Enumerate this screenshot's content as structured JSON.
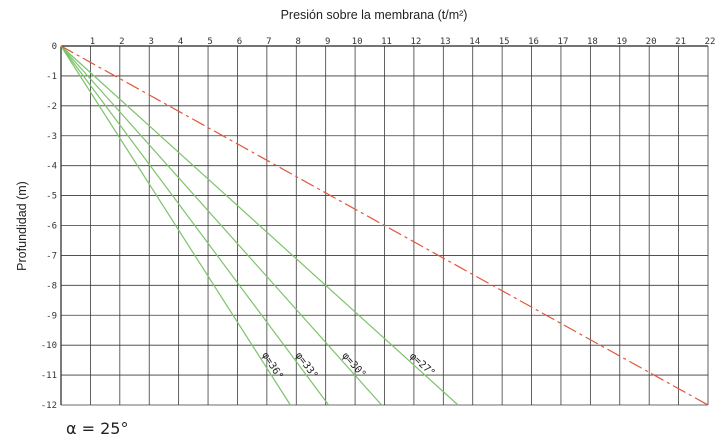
{
  "chart_data": {
    "type": "line",
    "title": "Presión sobre la membrana (t/m²)",
    "xlabel": "",
    "ylabel": "Profundidad (m)",
    "xlim": [
      0,
      22
    ],
    "ylim": [
      -12,
      0
    ],
    "x_ticks": [
      1,
      2,
      3,
      4,
      5,
      6,
      7,
      8,
      9,
      10,
      11,
      12,
      13,
      14,
      15,
      16,
      17,
      18,
      19,
      20,
      21,
      22
    ],
    "y_ticks": [
      0,
      -1,
      -2,
      -3,
      -4,
      -5,
      -6,
      -7,
      -8,
      -9,
      -10,
      -11,
      -12
    ],
    "grid": true,
    "series": [
      {
        "name": "φ=36°",
        "color": "#7cc36a",
        "dash": "solid",
        "x": [
          0,
          7.8
        ],
        "y": [
          0,
          -12
        ]
      },
      {
        "name": "φ=33°",
        "color": "#7cc36a",
        "dash": "solid",
        "x": [
          0,
          9.1
        ],
        "y": [
          0,
          -12
        ]
      },
      {
        "name": "φ=30°",
        "color": "#7cc36a",
        "dash": "solid",
        "x": [
          0,
          10.9
        ],
        "y": [
          0,
          -12
        ]
      },
      {
        "name": "φ=27°",
        "color": "#7cc36a",
        "dash": "solid",
        "x": [
          0,
          13.5
        ],
        "y": [
          0,
          -12
        ]
      },
      {
        "name": "",
        "color": "#e2563b",
        "dash": "dashdot",
        "x": [
          0,
          22
        ],
        "y": [
          0,
          -12
        ]
      }
    ],
    "annotation": "α = 25°"
  }
}
